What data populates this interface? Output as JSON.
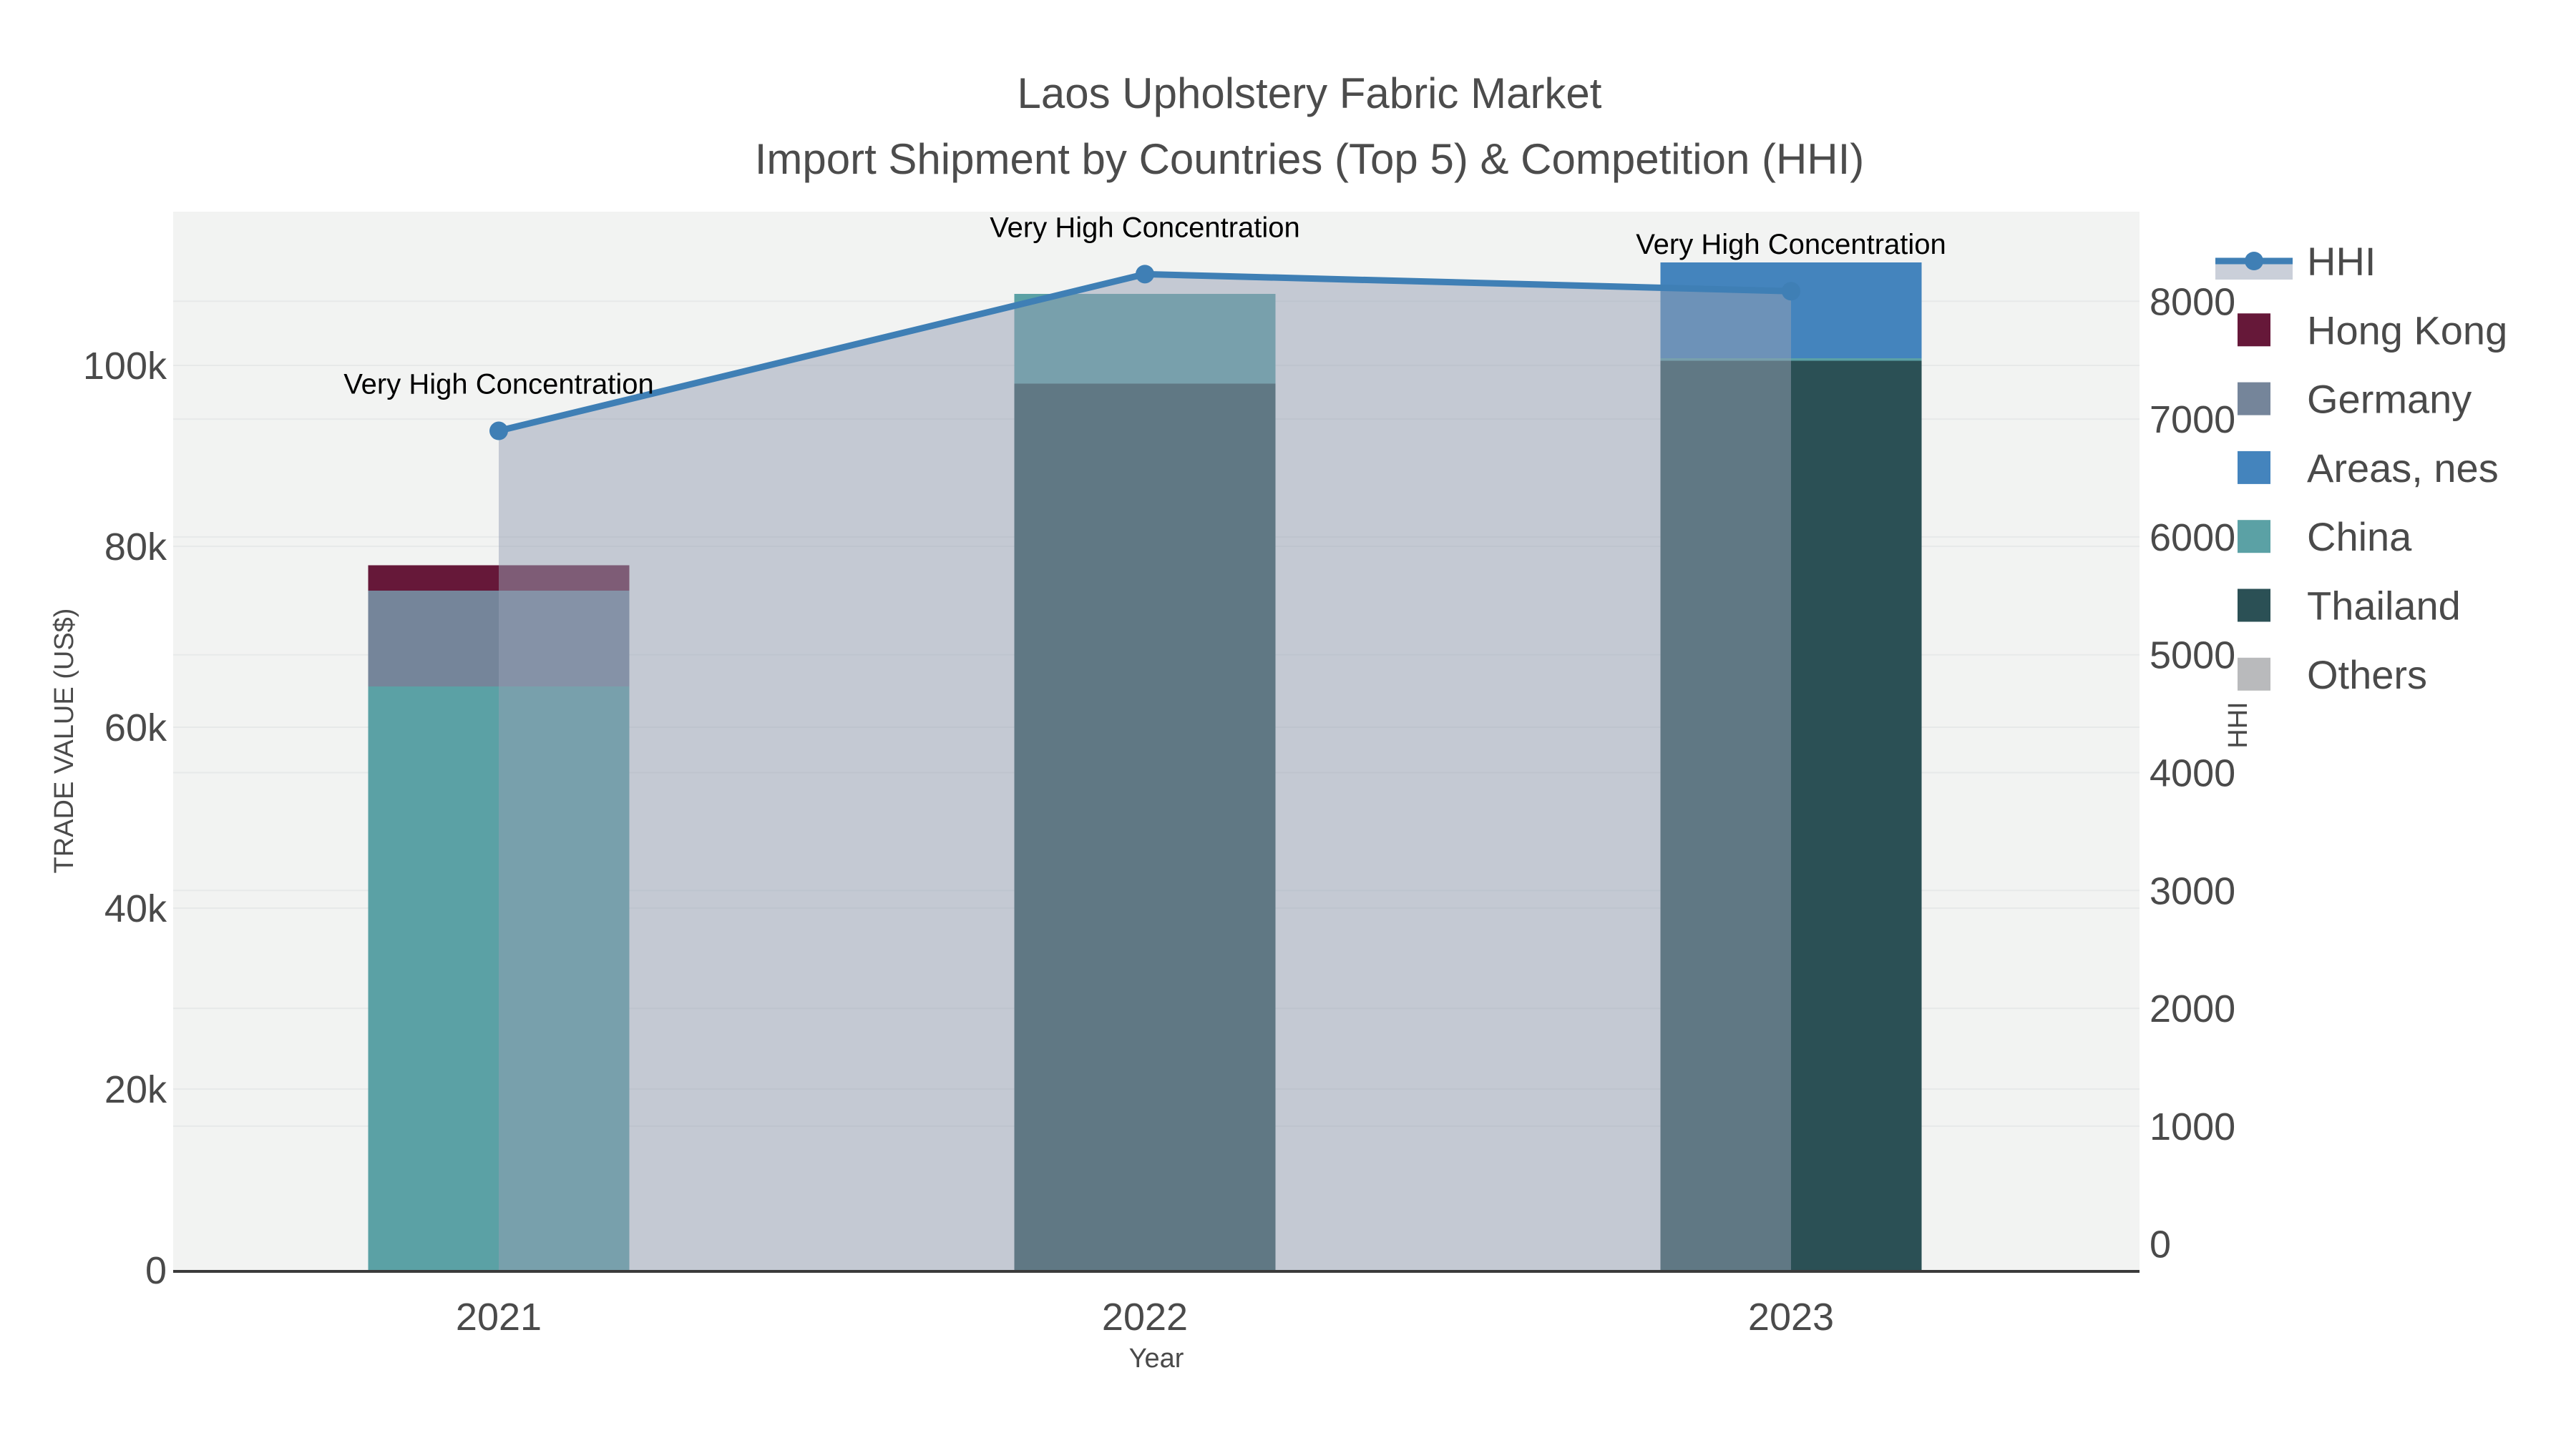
{
  "title": {
    "line1": "Laos Upholstery Fabric Market",
    "line2": "Import Shipment by Countries (Top 5) & Competition (HHI)"
  },
  "axes": {
    "x": {
      "title": "Year",
      "tick_labels": [
        "2021",
        "2022",
        "2023"
      ]
    },
    "y_left": {
      "title": "TRADE VALUE (US$)",
      "tick_labels": [
        "0",
        "20k",
        "40k",
        "60k",
        "80k",
        "100k"
      ],
      "tick_values": [
        0,
        20000,
        40000,
        60000,
        80000,
        100000
      ],
      "range": [
        0,
        117000
      ]
    },
    "y_right": {
      "title": "HHI",
      "tick_labels": [
        "0",
        "1000",
        "2000",
        "3000",
        "4000",
        "5000",
        "6000",
        "7000",
        "8000"
      ],
      "tick_values": [
        0,
        1000,
        2000,
        3000,
        4000,
        5000,
        6000,
        7000,
        8000
      ],
      "range": [
        -220,
        8760
      ]
    }
  },
  "annotations": [
    {
      "text": "Very High Concentration",
      "year": "2021"
    },
    {
      "text": "Very High Concentration",
      "year": "2022"
    },
    {
      "text": "Very High Concentration",
      "year": "2023"
    }
  ],
  "legend": {
    "items": [
      {
        "label": "HHI",
        "type": "line",
        "color": "#3f7fb5"
      },
      {
        "label": "Hong Kong",
        "type": "square",
        "color": "#661839"
      },
      {
        "label": "Germany",
        "type": "square",
        "color": "#75859a"
      },
      {
        "label": "Areas, nes",
        "type": "square",
        "color": "#4484bd"
      },
      {
        "label": "China",
        "type": "square",
        "color": "#5ba1a5"
      },
      {
        "label": "Thailand",
        "type": "square",
        "color": "#2b5055"
      },
      {
        "label": "Others",
        "type": "square",
        "color": "#b9babc"
      }
    ]
  },
  "chart_data": {
    "type": "bar+line",
    "title": "Laos Upholstery Fabric Market — Import Shipment by Countries (Top 5) & Competition (HHI)",
    "categories": [
      "2021",
      "2022",
      "2023"
    ],
    "xlabel": "Year",
    "ylabel": "TRADE VALUE (US$)",
    "y2label": "HHI",
    "ylim": [
      0,
      117000
    ],
    "y2lim": [
      -220,
      8760
    ],
    "grid": true,
    "legend_position": "right",
    "stack_order_bottom_to_top": [
      "Thailand",
      "China",
      "Germany",
      "Hong Kong",
      "Areas, nes",
      "Others"
    ],
    "series": [
      {
        "name": "Thailand",
        "color": "#2b5055",
        "values": [
          0,
          98000,
          100500
        ]
      },
      {
        "name": "China",
        "color": "#5ba1a5",
        "values": [
          64500,
          9900,
          300
        ]
      },
      {
        "name": "Germany",
        "color": "#75859a",
        "values": [
          10600,
          0,
          0
        ]
      },
      {
        "name": "Hong Kong",
        "color": "#661839",
        "values": [
          2800,
          0,
          0
        ]
      },
      {
        "name": "Areas, nes",
        "color": "#4484bd",
        "values": [
          0,
          0,
          10600
        ]
      },
      {
        "name": "Others",
        "color": "#b9babc",
        "values": [
          0,
          0,
          0
        ]
      }
    ],
    "bar_totals": [
      77900,
      107900,
      111400
    ],
    "line_series": {
      "name": "HHI",
      "axis": "right",
      "color": "#3f7fb5",
      "fill_color": "rgba(150,160,180,0.5)",
      "values": [
        6900,
        8230,
        8085
      ]
    }
  },
  "colors": {
    "paper_bg": "#ffffff",
    "plot_bg": "#f2f3f2",
    "grid": "#e7e9e9",
    "axis_line": "#3b3b3b",
    "text": "#4a4a4a",
    "annotation_text": "#000000"
  }
}
